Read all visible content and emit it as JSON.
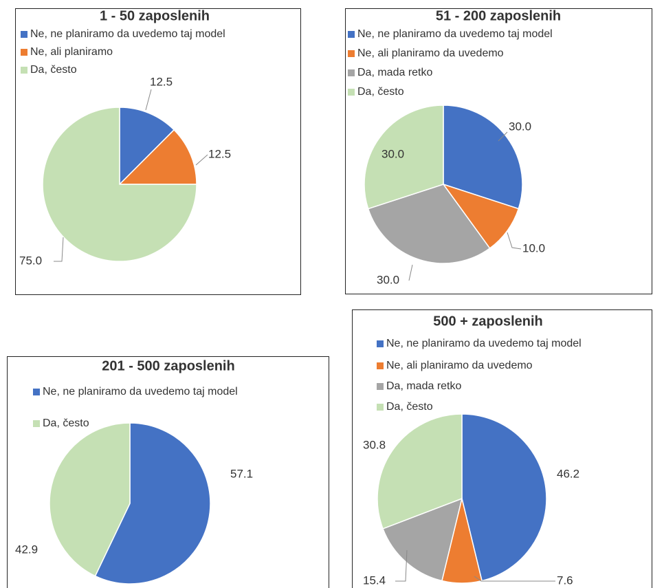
{
  "chart_data": [
    {
      "type": "pie",
      "title": "1 - 50 zaposlenih",
      "categories": [
        "Ne, ne planiramo da uvedemo taj model",
        "Ne, ali planiramo",
        "Da, često"
      ],
      "values": [
        12.5,
        12.5,
        75.0
      ],
      "value_labels": [
        "12.5",
        "12.5",
        "75.0"
      ],
      "colors": [
        "#4472c4",
        "#ed7d31",
        "#c5e0b4"
      ]
    },
    {
      "type": "pie",
      "title": "51 - 200 zaposlenih",
      "categories": [
        "Ne, ne planiramo da uvedemo taj model",
        "Ne, ali planiramo da uvedemo",
        "Da, mada retko",
        "Da, često"
      ],
      "values": [
        30.0,
        10.0,
        30.0,
        30.0
      ],
      "value_labels": [
        "30.0",
        "10.0",
        "30.0",
        "30.0"
      ],
      "colors": [
        "#4472c4",
        "#ed7d31",
        "#a5a5a5",
        "#c5e0b4"
      ]
    },
    {
      "type": "pie",
      "title": "201 - 500 zaposlenih",
      "categories": [
        "Ne, ne planiramo da uvedemo taj model",
        "Da, često"
      ],
      "values": [
        57.1,
        42.9
      ],
      "value_labels": [
        "57.1",
        "42.9"
      ],
      "colors": [
        "#4472c4",
        "#c5e0b4"
      ]
    },
    {
      "type": "pie",
      "title": "500 + zaposlenih",
      "categories": [
        "Ne, ne planiramo da uvedemo taj model",
        "Ne, ali planiramo da uvedemo",
        "Da, mada retko",
        "Da, često"
      ],
      "values": [
        46.2,
        7.6,
        15.4,
        30.8
      ],
      "value_labels": [
        "46.2",
        "7.6",
        "15.4",
        "30.8"
      ],
      "colors": [
        "#4472c4",
        "#ed7d31",
        "#a5a5a5",
        "#c5e0b4"
      ]
    }
  ]
}
